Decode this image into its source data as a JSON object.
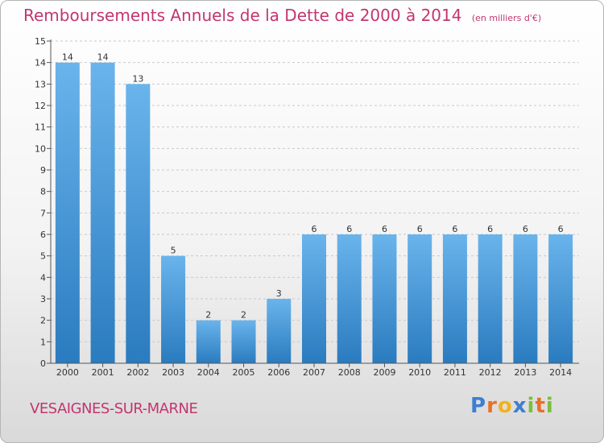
{
  "header": {
    "title": "Remboursements Annuels de la Dette de 2000 à 2014",
    "unit": "(en milliers d'€)"
  },
  "footer": {
    "commune": "VESAIGNES-SUR-MARNE",
    "brand_letters": [
      "P",
      "r",
      "o",
      "x",
      "i",
      "t",
      "i"
    ],
    "brand_colors": [
      "#3d7fd1",
      "#e8702a",
      "#f2b21c",
      "#3d7fd1",
      "#7bbf3a",
      "#e8702a",
      "#7bbf3a"
    ]
  },
  "colors": {
    "title": "#c2366f",
    "bar_top": "#6ab4ec",
    "bar_bottom": "#2a7bbf",
    "grid": "#c9c9c9"
  },
  "chart_data": {
    "type": "bar",
    "categories": [
      "2000",
      "2001",
      "2002",
      "2003",
      "2004",
      "2005",
      "2006",
      "2007",
      "2008",
      "2009",
      "2010",
      "2011",
      "2012",
      "2013",
      "2014"
    ],
    "values": [
      14,
      14,
      13,
      5,
      2,
      2,
      3,
      6,
      6,
      6,
      6,
      6,
      6,
      6,
      6
    ],
    "data_labels": [
      "14",
      "14",
      "13",
      "5",
      "2",
      "2",
      "3",
      "6",
      "6",
      "6",
      "6",
      "6",
      "6",
      "6",
      "6"
    ],
    "y_ticks": [
      "0",
      "1",
      "2",
      "3",
      "4",
      "5",
      "6",
      "7",
      "8",
      "9",
      "10",
      "11",
      "12",
      "13",
      "14",
      "15"
    ],
    "ylim": [
      0,
      15
    ],
    "grid": true
  }
}
